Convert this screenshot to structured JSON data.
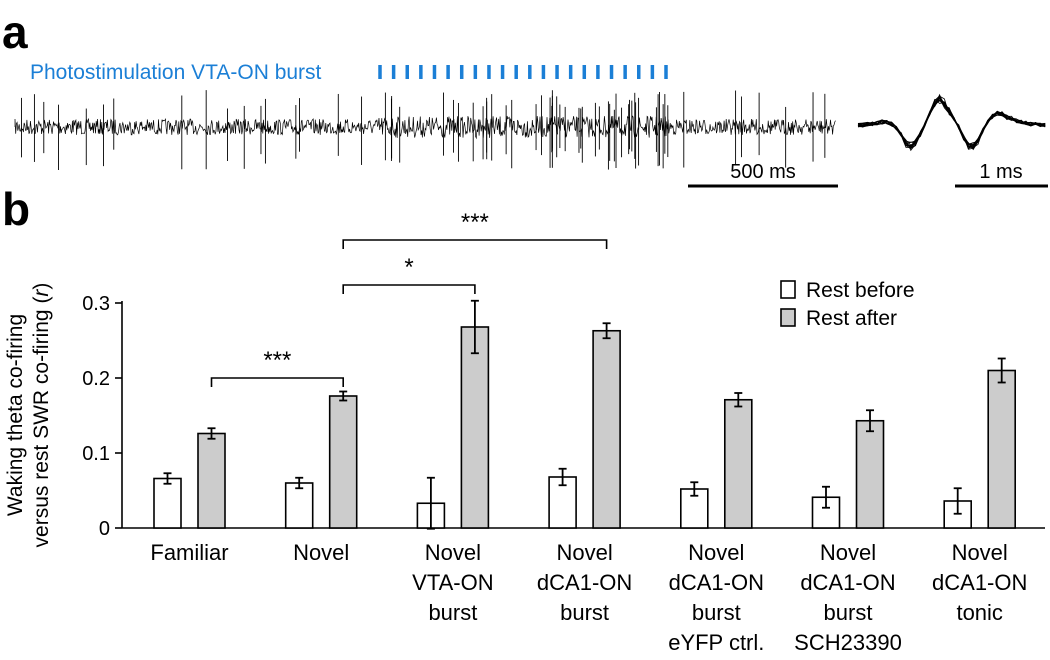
{
  "panel_a": {
    "letter": "a",
    "stim_label": "Photostimulation VTA-ON burst",
    "stim_color": "#1b7fd6",
    "stim_pulse_count": 22,
    "trace_scale_label": "500 ms",
    "waveform_scale_label": "1 ms"
  },
  "panel_b": {
    "letter": "b"
  },
  "chart_data": {
    "type": "bar",
    "title": "",
    "ylabel_lines": [
      "Waking theta co-firing",
      "versus rest SWR co-firing ("
    ],
    "ylabel_r": "r",
    "ylabel_close": ")",
    "ylim": [
      0,
      0.3
    ],
    "yticks": [
      "0",
      "0.1",
      "0.2",
      "0.3"
    ],
    "categories": [
      [
        "Familiar"
      ],
      [
        "Novel"
      ],
      [
        "Novel",
        "VTA-ON",
        "burst"
      ],
      [
        "Novel",
        "dCA1-ON",
        "burst"
      ],
      [
        "Novel",
        "dCA1-ON",
        "burst",
        "eYFP ctrl."
      ],
      [
        "Novel",
        "dCA1-ON",
        "burst",
        "SCH23390"
      ],
      [
        "Novel",
        "dCA1-ON",
        "tonic"
      ]
    ],
    "series": [
      {
        "name": "Rest before",
        "color": "#ffffff",
        "values": [
          0.066,
          0.06,
          0.033,
          0.068,
          0.052,
          0.041,
          0.036
        ],
        "errors": [
          0.007,
          0.007,
          0.034,
          0.011,
          0.009,
          0.014,
          0.017
        ]
      },
      {
        "name": "Rest after",
        "color": "#cccccc",
        "values": [
          0.126,
          0.176,
          0.268,
          0.263,
          0.171,
          0.143,
          0.21
        ],
        "errors": [
          0.007,
          0.006,
          0.035,
          0.01,
          0.009,
          0.014,
          0.016
        ]
      }
    ],
    "significance": [
      {
        "from": 0,
        "to": 1,
        "label": "***"
      },
      {
        "from": 1,
        "to": 2,
        "label": "*"
      },
      {
        "from": 1,
        "to": 3,
        "label": "***"
      }
    ],
    "legend_position": "top-right",
    "grid": false
  }
}
